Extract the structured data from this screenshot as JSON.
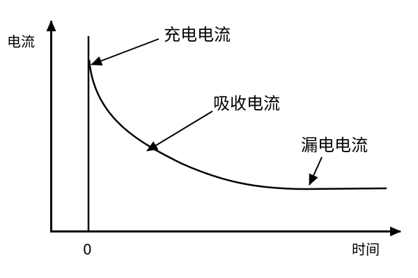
{
  "y_axis_label": "电流",
  "x_axis_label": "时间",
  "x_origin_label": "0",
  "annotations": {
    "charging": "充电电流",
    "absorption": "吸收电流",
    "leakage": "漏电电流"
  },
  "colors": {
    "line": "#000000",
    "background": "#ffffff"
  }
}
